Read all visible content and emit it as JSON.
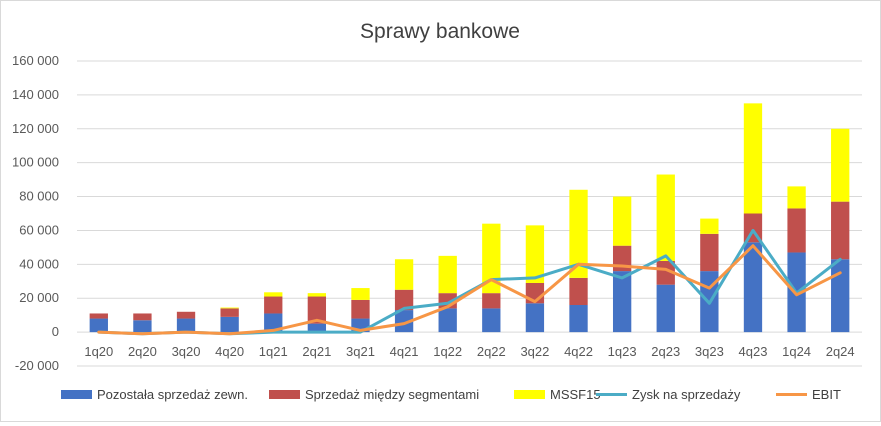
{
  "chart_data": {
    "type": "bar",
    "title": "Sprawy bankowe",
    "xlabel": "",
    "ylabel": "",
    "ylim": [
      -20000,
      160000
    ],
    "yticks": [
      -20000,
      0,
      20000,
      40000,
      60000,
      80000,
      100000,
      120000,
      140000,
      160000
    ],
    "ytick_labels": [
      "-20 000",
      "0",
      "20 000",
      "40 000",
      "60 000",
      "80 000",
      "100 000",
      "120 000",
      "140 000",
      "160 000"
    ],
    "grid": true,
    "legend_position": "bottom",
    "categories": [
      "1q20",
      "2q20",
      "3q20",
      "4q20",
      "1q21",
      "2q21",
      "3q21",
      "4q21",
      "1q22",
      "2q22",
      "3q22",
      "4q22",
      "1q23",
      "2q23",
      "3q23",
      "4q23",
      "1q24",
      "2q24"
    ],
    "stacked_series": [
      {
        "name": "Pozostała sprzedaż zewn.",
        "color": "#4472C4",
        "values": [
          8000,
          7000,
          8000,
          9000,
          11000,
          5000,
          8000,
          13000,
          14000,
          14000,
          17000,
          16000,
          36000,
          28000,
          36000,
          53000,
          47000,
          43000
        ]
      },
      {
        "name": "Sprzedaż między segmentami",
        "color": "#C0504D",
        "values": [
          3000,
          4000,
          4000,
          5000,
          10000,
          16000,
          11000,
          12000,
          9000,
          9000,
          12000,
          16000,
          15000,
          14000,
          22000,
          17000,
          26000,
          34000
        ]
      },
      {
        "name": "MSSF15",
        "color": "#FFFF00",
        "values": [
          0,
          0,
          0,
          500,
          2500,
          2000,
          7000,
          18000,
          22000,
          41000,
          34000,
          52000,
          29000,
          51000,
          9000,
          65000,
          13000,
          43000
        ]
      }
    ],
    "line_series": [
      {
        "name": "Zysk na sprzedaży",
        "color": "#4BACC6",
        "values": [
          0,
          -1000,
          0,
          -1000,
          0,
          0,
          0,
          14000,
          17000,
          31000,
          32000,
          40000,
          32000,
          45000,
          17000,
          60000,
          23000,
          43000
        ]
      },
      {
        "name": "EBIT",
        "color": "#F79646",
        "values": [
          0,
          -1000,
          0,
          -1000,
          1000,
          7000,
          1000,
          5000,
          15000,
          31000,
          18000,
          40000,
          39000,
          37000,
          26000,
          51000,
          22000,
          35000
        ]
      }
    ],
    "legend": [
      {
        "label": "Pozostała sprzedaż zewn.",
        "kind": "box",
        "color": "#4472C4"
      },
      {
        "label": "Sprzedaż między segmentami",
        "kind": "box",
        "color": "#C0504D"
      },
      {
        "label": "MSSF15",
        "kind": "box",
        "color": "#FFFF00"
      },
      {
        "label": "Zysk na sprzedaży",
        "kind": "line",
        "color": "#4BACC6"
      },
      {
        "label": "EBIT",
        "kind": "line",
        "color": "#F79646"
      }
    ]
  }
}
